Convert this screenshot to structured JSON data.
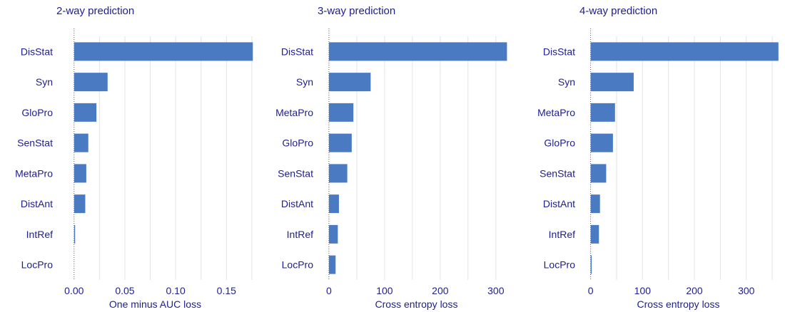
{
  "colors": {
    "bar": "#4A7AC2",
    "text": "#1E1E8C",
    "grid": "#E3E3E3",
    "zero_line": "#555555"
  },
  "chart_data": [
    {
      "type": "bar",
      "orientation": "horizontal",
      "title": "2-way prediction",
      "xlabel": "One minus AUC loss",
      "ylabel": "",
      "categories": [
        "DisStat",
        "Syn",
        "GloPro",
        "SenStat",
        "MetaPro",
        "DistAnt",
        "IntRef",
        "LocPro"
      ],
      "values": [
        0.176,
        0.033,
        0.022,
        0.014,
        0.012,
        0.011,
        0.001,
        0.0
      ],
      "xlim": [
        -0.009,
        0.18
      ],
      "xticks": [
        0.0,
        0.05,
        0.1,
        0.15
      ],
      "xtick_labels": [
        "0.00",
        "0.05",
        "0.10",
        "0.15"
      ],
      "grid_x": [
        0.025,
        0.05,
        0.075,
        0.1,
        0.125,
        0.15,
        0.175
      ],
      "grid": true
    },
    {
      "type": "bar",
      "orientation": "horizontal",
      "title": "3-way prediction",
      "xlabel": "Cross entropy loss",
      "ylabel": "",
      "categories": [
        "DisStat",
        "Syn",
        "MetaPro",
        "GloPro",
        "SenStat",
        "DistAnt",
        "IntRef",
        "LocPro"
      ],
      "values": [
        320,
        75,
        44,
        41,
        33,
        18,
        16,
        12
      ],
      "xlim": [
        -5,
        340
      ],
      "xticks": [
        0,
        100,
        200,
        300
      ],
      "xtick_labels": [
        "0",
        "100",
        "200",
        "300"
      ],
      "grid_x": [
        50,
        100,
        150,
        200,
        250,
        300
      ],
      "grid": true
    },
    {
      "type": "bar",
      "orientation": "horizontal",
      "title": "4-way prediction",
      "xlabel": "Cross entropy loss",
      "ylabel": "",
      "categories": [
        "DisStat",
        "Syn",
        "MetaPro",
        "GloPro",
        "SenStat",
        "DistAnt",
        "IntRef",
        "LocPro"
      ],
      "values": [
        362,
        83,
        47,
        43,
        30,
        18,
        16,
        2
      ],
      "xlim": [
        -5,
        365
      ],
      "xticks": [
        0,
        100,
        200,
        300
      ],
      "xtick_labels": [
        "0",
        "100",
        "200",
        "300"
      ],
      "grid_x": [
        50,
        100,
        150,
        200,
        250,
        300,
        350
      ],
      "grid": true
    }
  ]
}
